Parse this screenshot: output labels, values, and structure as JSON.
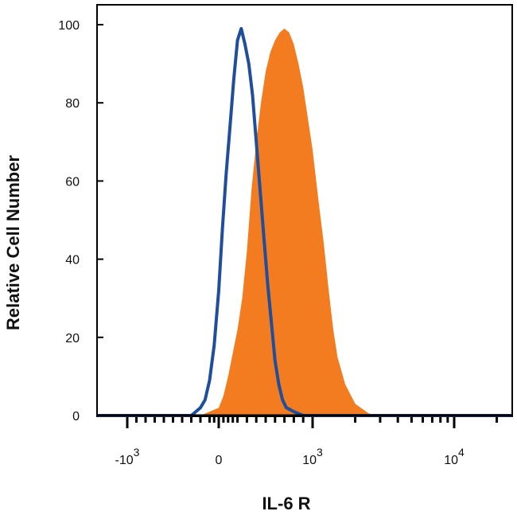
{
  "chart_data": {
    "type": "area",
    "title": "",
    "xlabel": "IL-6 R",
    "ylabel": "Relative Cell Number",
    "xscale": "biexponential",
    "ylim": [
      0,
      100
    ],
    "y_ticks": [
      "0",
      "20",
      "40",
      "60",
      "80",
      "100"
    ],
    "x_ticks": [
      {
        "value": -1000,
        "base": "-10",
        "exp": "3"
      },
      {
        "value": 0,
        "base": "0",
        "exp": ""
      },
      {
        "value": 1000,
        "base": "10",
        "exp": "3"
      },
      {
        "value": 10000,
        "base": "10",
        "exp": "4"
      }
    ],
    "grid": false,
    "legend": "none",
    "series": [
      {
        "style": "filled",
        "color": "#f47c20",
        "x": [
          -200,
          -100,
          0,
          50,
          100,
          150,
          200,
          250,
          300,
          350,
          400,
          450,
          500,
          550,
          600,
          650,
          700,
          750,
          800,
          850,
          900,
          950,
          1000,
          1100,
          1200,
          1300,
          1400,
          1500,
          1700,
          2000,
          2500,
          3000
        ],
        "y": [
          0,
          1,
          2,
          5,
          10,
          16,
          22,
          30,
          42,
          58,
          70,
          80,
          88,
          93,
          96,
          98,
          99,
          98,
          95,
          90,
          84,
          76,
          68,
          55,
          44,
          32,
          22,
          15,
          8,
          3,
          0.5,
          0
        ]
      },
      {
        "style": "outline",
        "color": "#1f4e9c",
        "x": [
          -300,
          -250,
          -200,
          -150,
          -100,
          -50,
          0,
          40,
          80,
          120,
          160,
          200,
          240,
          280,
          320,
          360,
          400,
          440,
          480,
          520,
          560,
          600,
          640,
          680,
          720,
          800,
          900,
          1000
        ],
        "y": [
          0,
          1,
          2,
          4,
          9,
          18,
          32,
          48,
          62,
          74,
          86,
          96,
          99,
          95,
          90,
          82,
          70,
          58,
          46,
          34,
          24,
          14,
          8,
          4,
          2,
          1,
          0,
          0
        ]
      }
    ]
  }
}
